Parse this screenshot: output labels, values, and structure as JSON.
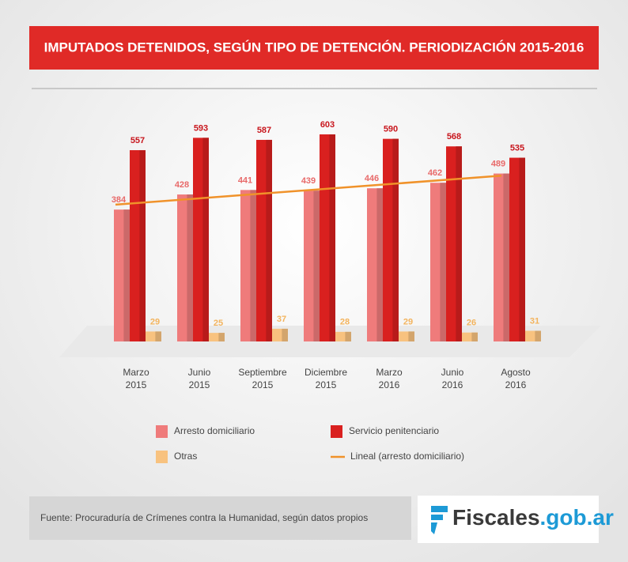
{
  "chart_data": {
    "type": "bar",
    "title": "IMPUTADOS DETENIDOS, SEGÚN TIPO DE DETENCIÓN. PERIODIZACIÓN 2015-2016",
    "categories": [
      [
        "Marzo",
        "2015"
      ],
      [
        "Junio",
        "2015"
      ],
      [
        "Septiembre",
        "2015"
      ],
      [
        "Diciembre",
        "2015"
      ],
      [
        "Marzo",
        "2016"
      ],
      [
        "Junio",
        "2016"
      ],
      [
        "Agosto",
        "2016"
      ]
    ],
    "series": [
      {
        "name": "Arresto domiciliario",
        "color": "#ef7b7b",
        "values": [
          384,
          428,
          441,
          439,
          446,
          462,
          489
        ]
      },
      {
        "name": "Servicio penitenciario",
        "color": "#d9201f",
        "values": [
          557,
          593,
          587,
          603,
          590,
          568,
          535
        ]
      },
      {
        "name": "Otras",
        "color": "#f8c27f",
        "values": [
          29,
          25,
          37,
          28,
          29,
          26,
          31
        ]
      }
    ],
    "trendline": {
      "name": "Lineal (arresto domiciliario)",
      "color": "#f0922a"
    }
  },
  "source": "Fuente: Procuraduría de Crímenes contra la Humanidad, según datos propios",
  "logo": {
    "main": "Fiscales",
    "domain": ".gob.ar"
  }
}
